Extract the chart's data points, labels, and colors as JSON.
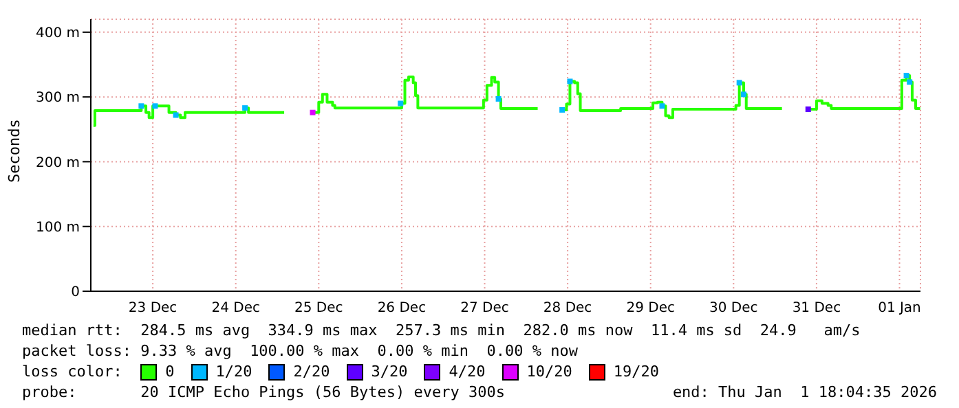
{
  "chart_data": {
    "type": "step",
    "ylabel": "Seconds",
    "xlim": [
      "2025-12-22T18:04",
      "2026-01-01T18:04"
    ],
    "xticks": [
      {
        "value": "2025-12-23T12:00",
        "label": "23 Dec"
      },
      {
        "value": "2025-12-24T12:00",
        "label": "24 Dec"
      },
      {
        "value": "2025-12-25T12:00",
        "label": "25 Dec"
      },
      {
        "value": "2025-12-26T12:00",
        "label": "26 Dec"
      },
      {
        "value": "2025-12-27T12:00",
        "label": "27 Dec"
      },
      {
        "value": "2025-12-28T12:00",
        "label": "28 Dec"
      },
      {
        "value": "2025-12-29T12:00",
        "label": "29 Dec"
      },
      {
        "value": "2025-12-30T12:00",
        "label": "30 Dec"
      },
      {
        "value": "2025-12-31T12:00",
        "label": "31 Dec"
      },
      {
        "value": "2026-01-01T12:00",
        "label": "01 Jan"
      }
    ],
    "ylim": [
      0,
      420
    ],
    "yticks": [
      0,
      {
        "value": 100,
        "label": "100 m"
      },
      {
        "value": 200,
        "label": "200 m"
      },
      {
        "value": 300,
        "label": "300 m"
      },
      {
        "value": 400,
        "label": "400 m"
      }
    ],
    "grid": true,
    "legend": "bottom",
    "legend_title": "loss color:",
    "series": [
      {
        "name": "0",
        "color": "#26ff00",
        "x": [
          "2025-12-22T18:50",
          "2025-12-22T19:15",
          "2025-12-23T08:40",
          "2025-12-23T10:00",
          "2025-12-23T10:55",
          "2025-12-23T12:00",
          "2025-12-23T16:40",
          "2025-12-23T18:40",
          "2025-12-23T20:00",
          "2025-12-23T21:20",
          "2025-12-24T14:40",
          "2025-12-24T15:40",
          "2025-12-25T02:00",
          "2025-12-25T02:05",
          "2025-12-25T10:15",
          "2025-12-25T12:00",
          "2025-12-25T13:05",
          "2025-12-25T14:25",
          "2025-12-25T16:00",
          "2025-12-25T16:40",
          "2025-12-26T12:00",
          "2025-12-26T12:55",
          "2025-12-26T14:00",
          "2025-12-26T15:20",
          "2025-12-26T16:00",
          "2025-12-26T16:40",
          "2025-12-27T11:40",
          "2025-12-27T12:40",
          "2025-12-27T14:00",
          "2025-12-27T14:55",
          "2025-12-27T16:00",
          "2025-12-27T16:40",
          "2025-12-28T03:20",
          "2025-12-28T03:25",
          "2025-12-28T10:25",
          "2025-12-28T11:40",
          "2025-12-28T12:40",
          "2025-12-28T14:00",
          "2025-12-28T14:55",
          "2025-12-28T15:40",
          "2025-12-29T03:20",
          "2025-12-29T12:40",
          "2025-12-29T14:00",
          "2025-12-29T15:20",
          "2025-12-29T16:20",
          "2025-12-29T17:20",
          "2025-12-29T18:25",
          "2025-12-30T12:40",
          "2025-12-30T13:40",
          "2025-12-30T14:55",
          "2025-12-30T15:40",
          "2025-12-31T02:00",
          "2025-12-31T02:05",
          "2025-12-31T09:35",
          "2025-12-31T12:00",
          "2025-12-31T13:35",
          "2025-12-31T15:20",
          "2025-12-31T16:15",
          "2026-01-01T12:40",
          "2026-01-01T14:00",
          "2026-01-01T14:55",
          "2026-01-01T15:40",
          "2026-01-01T16:40",
          "2026-01-01T18:00"
        ],
        "values": [
          256,
          279,
          286,
          276,
          268,
          286,
          276,
          272,
          268,
          276,
          283,
          276,
          276,
          null,
          276,
          292,
          304,
          292,
          287,
          283,
          290,
          326,
          331,
          322,
          302,
          283,
          295,
          318,
          330,
          323,
          297,
          282,
          282,
          null,
          280,
          289,
          324,
          322,
          305,
          279,
          282,
          291,
          292,
          286,
          271,
          268,
          281,
          287,
          322,
          304,
          282,
          282,
          null,
          281,
          294,
          290,
          287,
          282,
          326,
          333,
          323,
          295,
          282,
          282
        ]
      },
      {
        "name": "1/20",
        "type": "scatter",
        "color": "#00b8ff",
        "x": [
          "2025-12-23T08:40",
          "2025-12-23T12:40",
          "2025-12-23T18:40",
          "2025-12-24T14:40",
          "2025-12-26T11:40",
          "2025-12-27T16:00",
          "2025-12-28T10:25",
          "2025-12-28T12:40",
          "2025-12-29T15:20",
          "2025-12-30T13:40",
          "2025-12-30T14:55",
          "2026-01-01T14:00",
          "2026-01-01T14:55"
        ],
        "values": [
          286,
          286,
          272,
          283,
          290,
          297,
          280,
          324,
          286,
          322,
          304,
          333,
          323
        ]
      },
      {
        "name": "2/20",
        "type": "scatter",
        "color": "#0059ff"
      },
      {
        "name": "3/20",
        "type": "scatter",
        "color": "#5e00ff",
        "x": [
          "2025-12-31T09:35"
        ],
        "values": [
          281
        ]
      },
      {
        "name": "4/20",
        "type": "scatter",
        "color": "#7e00ff"
      },
      {
        "name": "10/20",
        "type": "scatter",
        "color": "#dd00ff",
        "x": [
          "2025-12-25T10:15"
        ],
        "values": [
          276
        ]
      },
      {
        "name": "19/20",
        "type": "scatter",
        "color": "#ff0000"
      }
    ],
    "annotations": [
      "median rtt:  284.5 ms avg  334.9 ms max  257.3 ms min  282.0 ms now  11.4 ms sd  24.9   am/s",
      "packet loss: 9.33 % avg  100.00 % max  0.00 % min  0.00 % now",
      "probe:       20 ICMP Echo Pings (56 Bytes) every 300s",
      "end: Thu Jan  1 18:04:35 2026"
    ]
  }
}
